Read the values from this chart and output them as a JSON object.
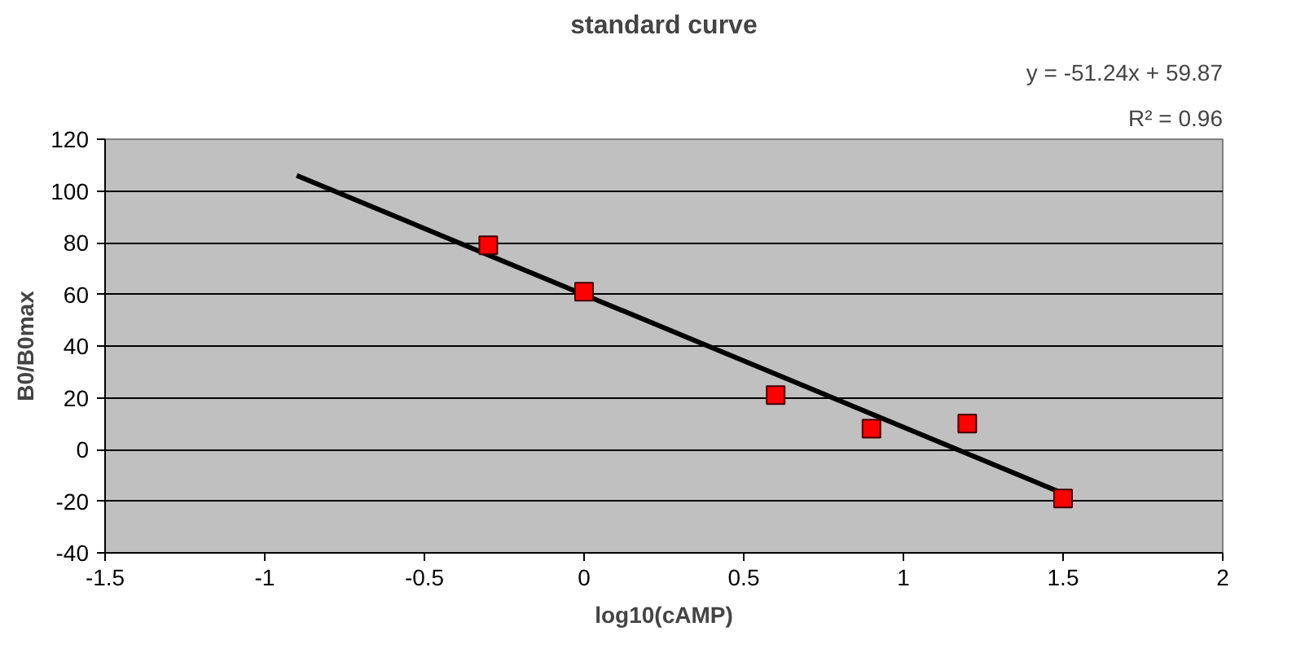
{
  "chart_data": {
    "type": "scatter",
    "title": "standard curve",
    "xlabel": "log10(cAMP)",
    "ylabel": "B0/B0max",
    "annotations": [
      "y = -51.24x + 59.87",
      "R² = 0.96"
    ],
    "xlim": [
      -1.5,
      2
    ],
    "xticks": [
      -1.5,
      -1,
      -0.5,
      0,
      0.5,
      1,
      1.5,
      2
    ],
    "ylim": [
      -40,
      120
    ],
    "yticks": [
      -40,
      -20,
      0,
      20,
      40,
      60,
      80,
      100,
      120
    ],
    "grid": "y",
    "series": [
      {
        "color": "#ff0000",
        "marker": "square",
        "x": [
          -0.3,
          0,
          0.6,
          0.9,
          1.2,
          1.5
        ],
        "values": [
          79,
          61,
          21,
          8,
          10,
          -19
        ]
      },
      {
        "type": "line",
        "color": "#000000",
        "x": [
          -0.9,
          1.5
        ],
        "values": [
          106,
          -17
        ]
      }
    ]
  }
}
